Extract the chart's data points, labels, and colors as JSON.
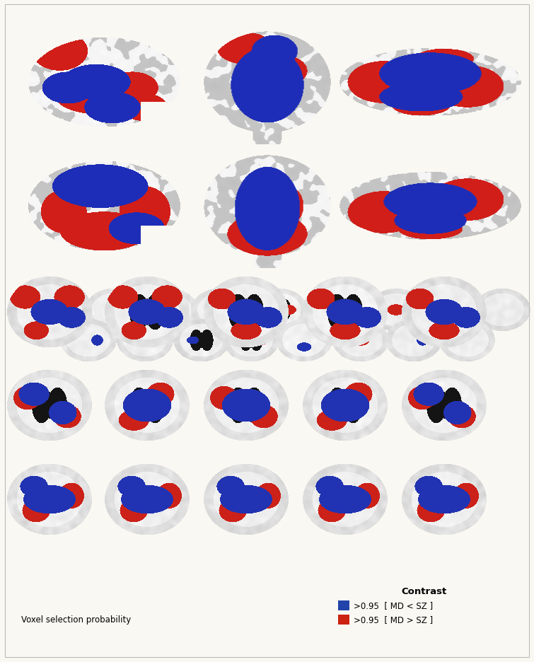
{
  "background_color": "#faf8f2",
  "border_color": "#bbbbbb",
  "legend_title": "Contrast",
  "legend_title_fontsize": 9.5,
  "legend_title_fontweight": "bold",
  "legend_items": [
    {
      "label": ">0.95  [ MD < SZ ]",
      "color": "#2244aa"
    },
    {
      "label": ">0.95  [ MD > SZ ]",
      "color": "#cc2211"
    }
  ],
  "legend_fontsize": 8.5,
  "voxel_label": "Voxel selection probability",
  "voxel_label_fontsize": 8.5,
  "fig_width": 7.55,
  "fig_height": 9.37,
  "dpi": 100
}
